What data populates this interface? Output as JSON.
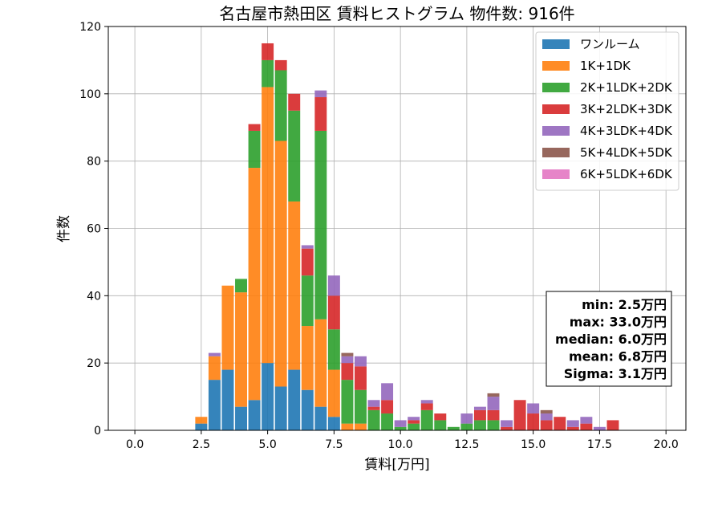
{
  "chart_data": {
    "type": "bar",
    "stacked": true,
    "title": "名古屋市熱田区 賃料ヒストグラム  物件数: 916件",
    "xlabel": "賃料[万円]",
    "ylabel": "件数",
    "xlim": [
      -1.0,
      20.75
    ],
    "ylim": [
      0,
      120
    ],
    "xticks": [
      0.0,
      2.5,
      5.0,
      7.5,
      10.0,
      12.5,
      15.0,
      17.5,
      20.0
    ],
    "xtick_labels": [
      "0.0",
      "2.5",
      "5.0",
      "7.5",
      "10.0",
      "12.5",
      "15.0",
      "17.5",
      "20.0"
    ],
    "yticks": [
      0,
      20,
      40,
      60,
      80,
      100,
      120
    ],
    "ytick_labels": [
      "0",
      "20",
      "40",
      "60",
      "80",
      "100",
      "120"
    ],
    "grid": true,
    "legend_position": "top-right",
    "bin_width": 0.5,
    "bins": [
      2.5,
      3.0,
      3.5,
      4.0,
      4.5,
      5.0,
      5.5,
      6.0,
      6.5,
      7.0,
      7.5,
      8.0,
      8.5,
      9.0,
      9.5,
      10.0,
      10.5,
      11.0,
      11.5,
      12.0,
      12.5,
      13.0,
      13.5,
      14.0,
      14.5,
      15.0,
      15.5,
      16.0,
      16.5,
      17.0,
      17.5,
      18.0
    ],
    "series": [
      {
        "name": "ワンルーム",
        "color": "#1f77b4",
        "values": [
          2,
          15,
          18,
          7,
          9,
          20,
          13,
          18,
          12,
          7,
          4,
          0,
          0,
          0,
          0,
          0,
          0,
          0,
          0,
          0,
          0,
          0,
          0,
          0,
          0,
          0,
          0,
          0,
          0,
          0,
          0,
          0
        ]
      },
      {
        "name": "1K+1DK",
        "color": "#ff7f0e",
        "values": [
          2,
          7,
          25,
          34,
          69,
          82,
          73,
          50,
          19,
          26,
          14,
          2,
          2,
          0,
          0,
          0,
          0,
          0,
          0,
          0,
          0,
          0,
          0,
          0,
          0,
          0,
          0,
          0,
          0,
          0,
          0,
          0
        ]
      },
      {
        "name": "2K+1LDK+2DK",
        "color": "#2ca02c",
        "values": [
          0,
          0,
          0,
          4,
          11,
          8,
          21,
          27,
          15,
          56,
          12,
          13,
          10,
          6,
          5,
          1,
          2,
          6,
          3,
          1,
          2,
          3,
          3,
          0,
          0,
          0,
          0,
          0,
          0,
          0,
          0,
          0
        ]
      },
      {
        "name": "3K+2LDK+3DK",
        "color": "#d62728",
        "values": [
          0,
          0,
          0,
          0,
          2,
          5,
          3,
          5,
          8,
          10,
          10,
          5,
          7,
          1,
          4,
          0,
          1,
          2,
          2,
          0,
          0,
          3,
          3,
          1,
          9,
          5,
          3,
          4,
          1,
          2,
          0,
          3
        ]
      },
      {
        "name": "4K+3LDK+4DK",
        "color": "#9467bd",
        "values": [
          0,
          1,
          0,
          0,
          0,
          0,
          0,
          0,
          1,
          2,
          6,
          2,
          3,
          2,
          5,
          2,
          1,
          1,
          0,
          0,
          3,
          1,
          4,
          2,
          0,
          3,
          2,
          0,
          2,
          2,
          1,
          0
        ]
      },
      {
        "name": "5K+4LDK+5DK",
        "color": "#8c564b",
        "values": [
          0,
          0,
          0,
          0,
          0,
          0,
          0,
          0,
          0,
          0,
          0,
          1,
          0,
          0,
          0,
          0,
          0,
          0,
          0,
          0,
          0,
          0,
          1,
          0,
          0,
          0,
          1,
          0,
          0,
          0,
          0,
          0
        ]
      },
      {
        "name": "6K+5LDK+6DK",
        "color": "#e377c2",
        "values": [
          0,
          0,
          0,
          0,
          0,
          0,
          0,
          0,
          0,
          0,
          0,
          0,
          0,
          0,
          0,
          0,
          0,
          0,
          0,
          0,
          0,
          0,
          0,
          0,
          0,
          0,
          0,
          0,
          0,
          0,
          0,
          0
        ]
      }
    ],
    "stats_box": [
      "min: 2.5万円",
      "max: 33.0万円",
      "median: 6.0万円",
      "mean: 6.8万円",
      "Sigma: 3.1万円"
    ]
  }
}
